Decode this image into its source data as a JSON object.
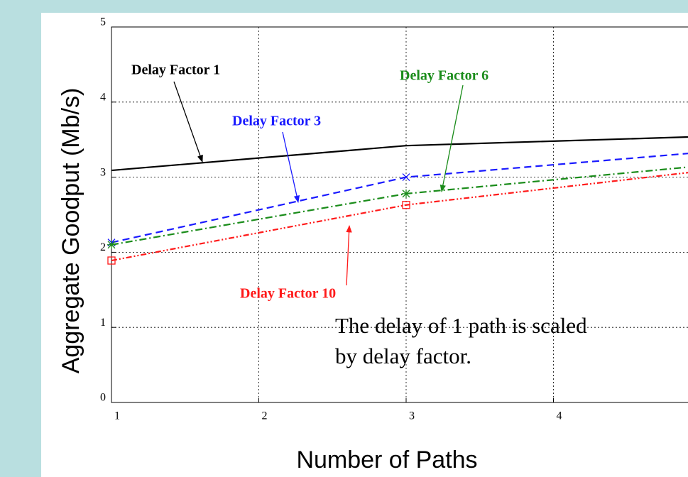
{
  "chart_data": {
    "type": "line",
    "xlabel": "Number of Paths",
    "ylabel": "Aggregate Goodput (Mb/s)",
    "x": [
      1,
      3,
      5
    ],
    "xlim": [
      1,
      5
    ],
    "xticks": [
      1,
      2,
      3,
      4
    ],
    "ylim": [
      0,
      5
    ],
    "yticks": [
      0,
      1,
      2,
      3,
      4,
      5
    ],
    "grid": true,
    "series": [
      {
        "name": "Delay Factor 1",
        "color": "#000000",
        "style": "solid",
        "marker": "none",
        "values": [
          3.09,
          3.42,
          3.54
        ]
      },
      {
        "name": "Delay Factor 3",
        "color": "#1a1aff",
        "style": "dashed",
        "marker": "x",
        "values": [
          2.13,
          3.0,
          3.33
        ]
      },
      {
        "name": "Delay Factor 6",
        "color": "#1a8c1a",
        "style": "dashdot",
        "marker": "star",
        "values": [
          2.1,
          2.78,
          3.15
        ]
      },
      {
        "name": "Delay Factor 10",
        "color": "#ff1a1a",
        "style": "dashdotdot",
        "marker": "square",
        "values": [
          1.89,
          2.63,
          3.08
        ]
      }
    ],
    "note": [
      "The delay of 1 path is scaled",
      "by delay factor."
    ]
  }
}
